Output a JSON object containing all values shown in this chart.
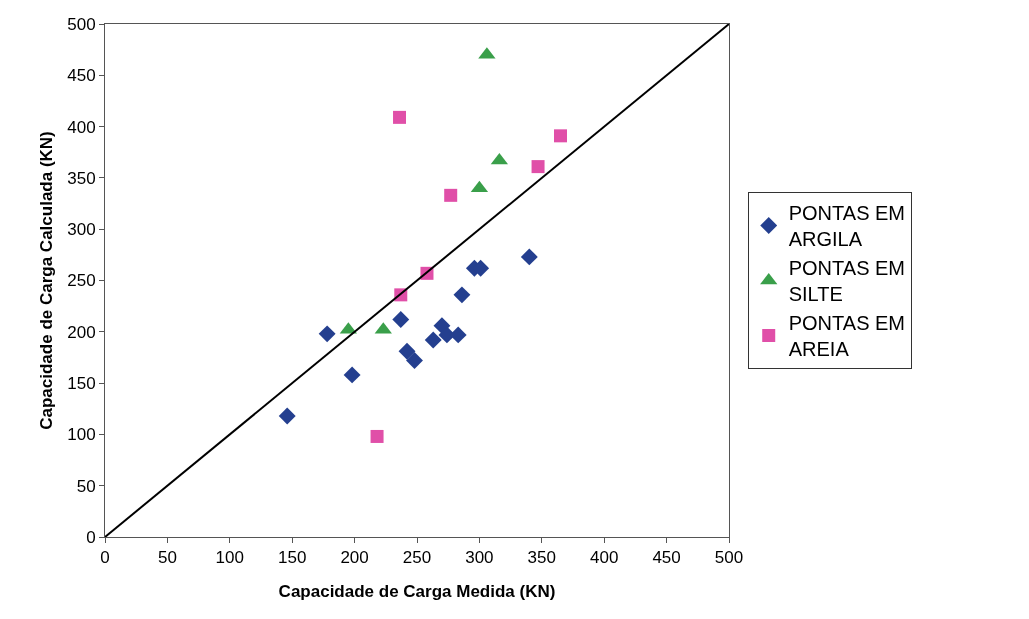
{
  "chart_data": {
    "type": "scatter",
    "xlabel": "Capacidade de Carga Medida (KN)",
    "ylabel": "Capacidade de Carga Calculada (KN)",
    "xlim": [
      0,
      500
    ],
    "xticks": [
      0,
      50,
      100,
      150,
      200,
      250,
      300,
      350,
      400,
      450,
      500
    ],
    "ylim": [
      0,
      500
    ],
    "yticks": [
      0,
      50,
      100,
      150,
      200,
      250,
      300,
      350,
      400,
      450,
      500
    ],
    "grid": false,
    "legend": "right",
    "series": [
      {
        "name": "PONTAS EM ARGILA",
        "color": "#243f8f",
        "marker": "diamond",
        "x": [
          146,
          178,
          198,
          237,
          242,
          248,
          263,
          270,
          274,
          283,
          286,
          296,
          301,
          340
        ],
        "values": [
          118,
          198,
          158,
          212,
          181,
          172,
          192,
          206,
          197,
          197,
          236,
          262,
          262,
          273
        ]
      },
      {
        "name": "PONTAS EM SILTE",
        "color": "#3a9f4a",
        "marker": "triangle",
        "x": [
          195,
          223,
          300,
          306,
          316
        ],
        "values": [
          202,
          202,
          340,
          470,
          367
        ]
      },
      {
        "name": "PONTAS EM AREIA",
        "color": "#e04fa8",
        "marker": "square",
        "x": [
          218,
          236,
          237,
          258,
          277,
          347,
          365
        ],
        "values": [
          98,
          409,
          236,
          257,
          333,
          361,
          391
        ]
      },
      {
        "type": "line",
        "color": "#000000",
        "marker": "none",
        "line_style": "solid",
        "x": [
          0,
          500
        ],
        "values": [
          0,
          500
        ]
      }
    ]
  }
}
